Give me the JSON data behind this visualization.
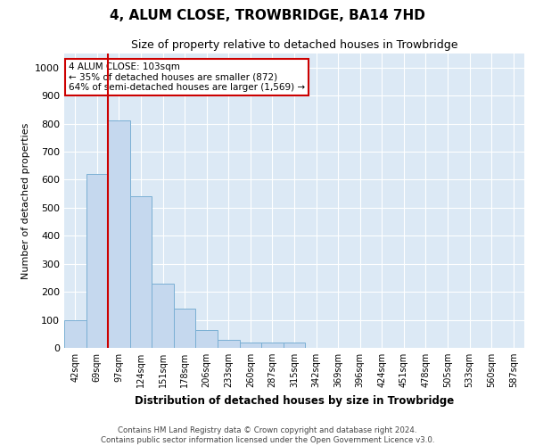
{
  "title": "4, ALUM CLOSE, TROWBRIDGE, BA14 7HD",
  "subtitle": "Size of property relative to detached houses in Trowbridge",
  "xlabel": "Distribution of detached houses by size in Trowbridge",
  "ylabel": "Number of detached properties",
  "bar_color": "#c5d8ee",
  "bar_edge_color": "#7aafd4",
  "background_color": "#dce9f5",
  "grid_color": "#ffffff",
  "annotation_line_color": "#cc0000",
  "annotation_box_color": "#cc0000",
  "annotation_text": "4 ALUM CLOSE: 103sqm\n← 35% of detached houses are smaller (872)\n64% of semi-detached houses are larger (1,569) →",
  "property_sqm": 103,
  "categories": [
    "42sqm",
    "69sqm",
    "97sqm",
    "124sqm",
    "151sqm",
    "178sqm",
    "206sqm",
    "233sqm",
    "260sqm",
    "287sqm",
    "315sqm",
    "342sqm",
    "369sqm",
    "396sqm",
    "424sqm",
    "451sqm",
    "478sqm",
    "505sqm",
    "533sqm",
    "560sqm",
    "587sqm"
  ],
  "values": [
    100,
    620,
    810,
    540,
    230,
    140,
    65,
    30,
    20,
    20,
    20,
    0,
    0,
    0,
    0,
    0,
    0,
    0,
    0,
    0,
    0
  ],
  "property_bin_index": 2,
  "ylim": [
    0,
    1050
  ],
  "yticks": [
    0,
    100,
    200,
    300,
    400,
    500,
    600,
    700,
    800,
    900,
    1000
  ],
  "footer_line1": "Contains HM Land Registry data © Crown copyright and database right 2024.",
  "footer_line2": "Contains public sector information licensed under the Open Government Licence v3.0."
}
